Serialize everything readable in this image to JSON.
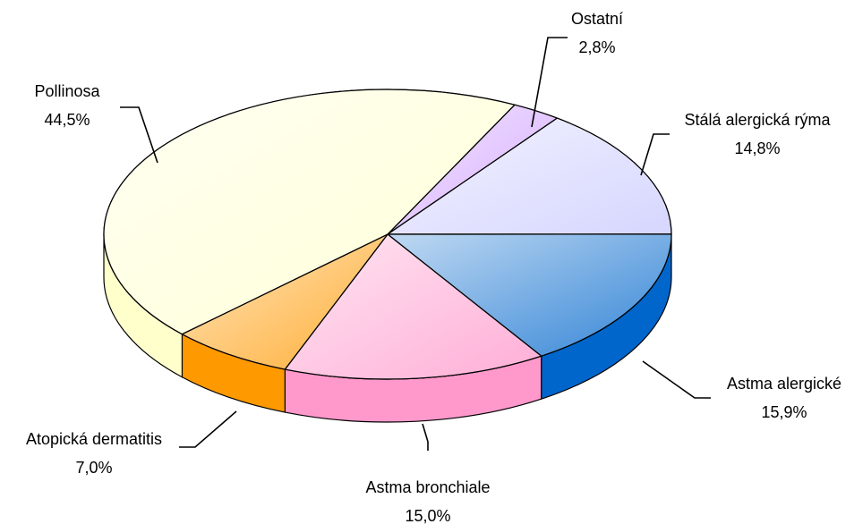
{
  "chart_data": {
    "type": "pie3d",
    "categories": [
      "Ostatní",
      "Stálá alergická rýma",
      "Astma alergické",
      "Astma bronchiale",
      "Atopická dermatitis",
      "Pollinosa"
    ],
    "values": [
      2.8,
      14.8,
      15.9,
      15.0,
      7.0,
      44.5
    ],
    "value_labels": [
      "2,8%",
      "14,8%",
      "15,9%",
      "15,0%",
      "7,0%",
      "44,5%"
    ],
    "colors": [
      "#cc99ff",
      "#ccccff",
      "#0066cc",
      "#ff99cc",
      "#ff9900",
      "#ffffcc"
    ]
  }
}
